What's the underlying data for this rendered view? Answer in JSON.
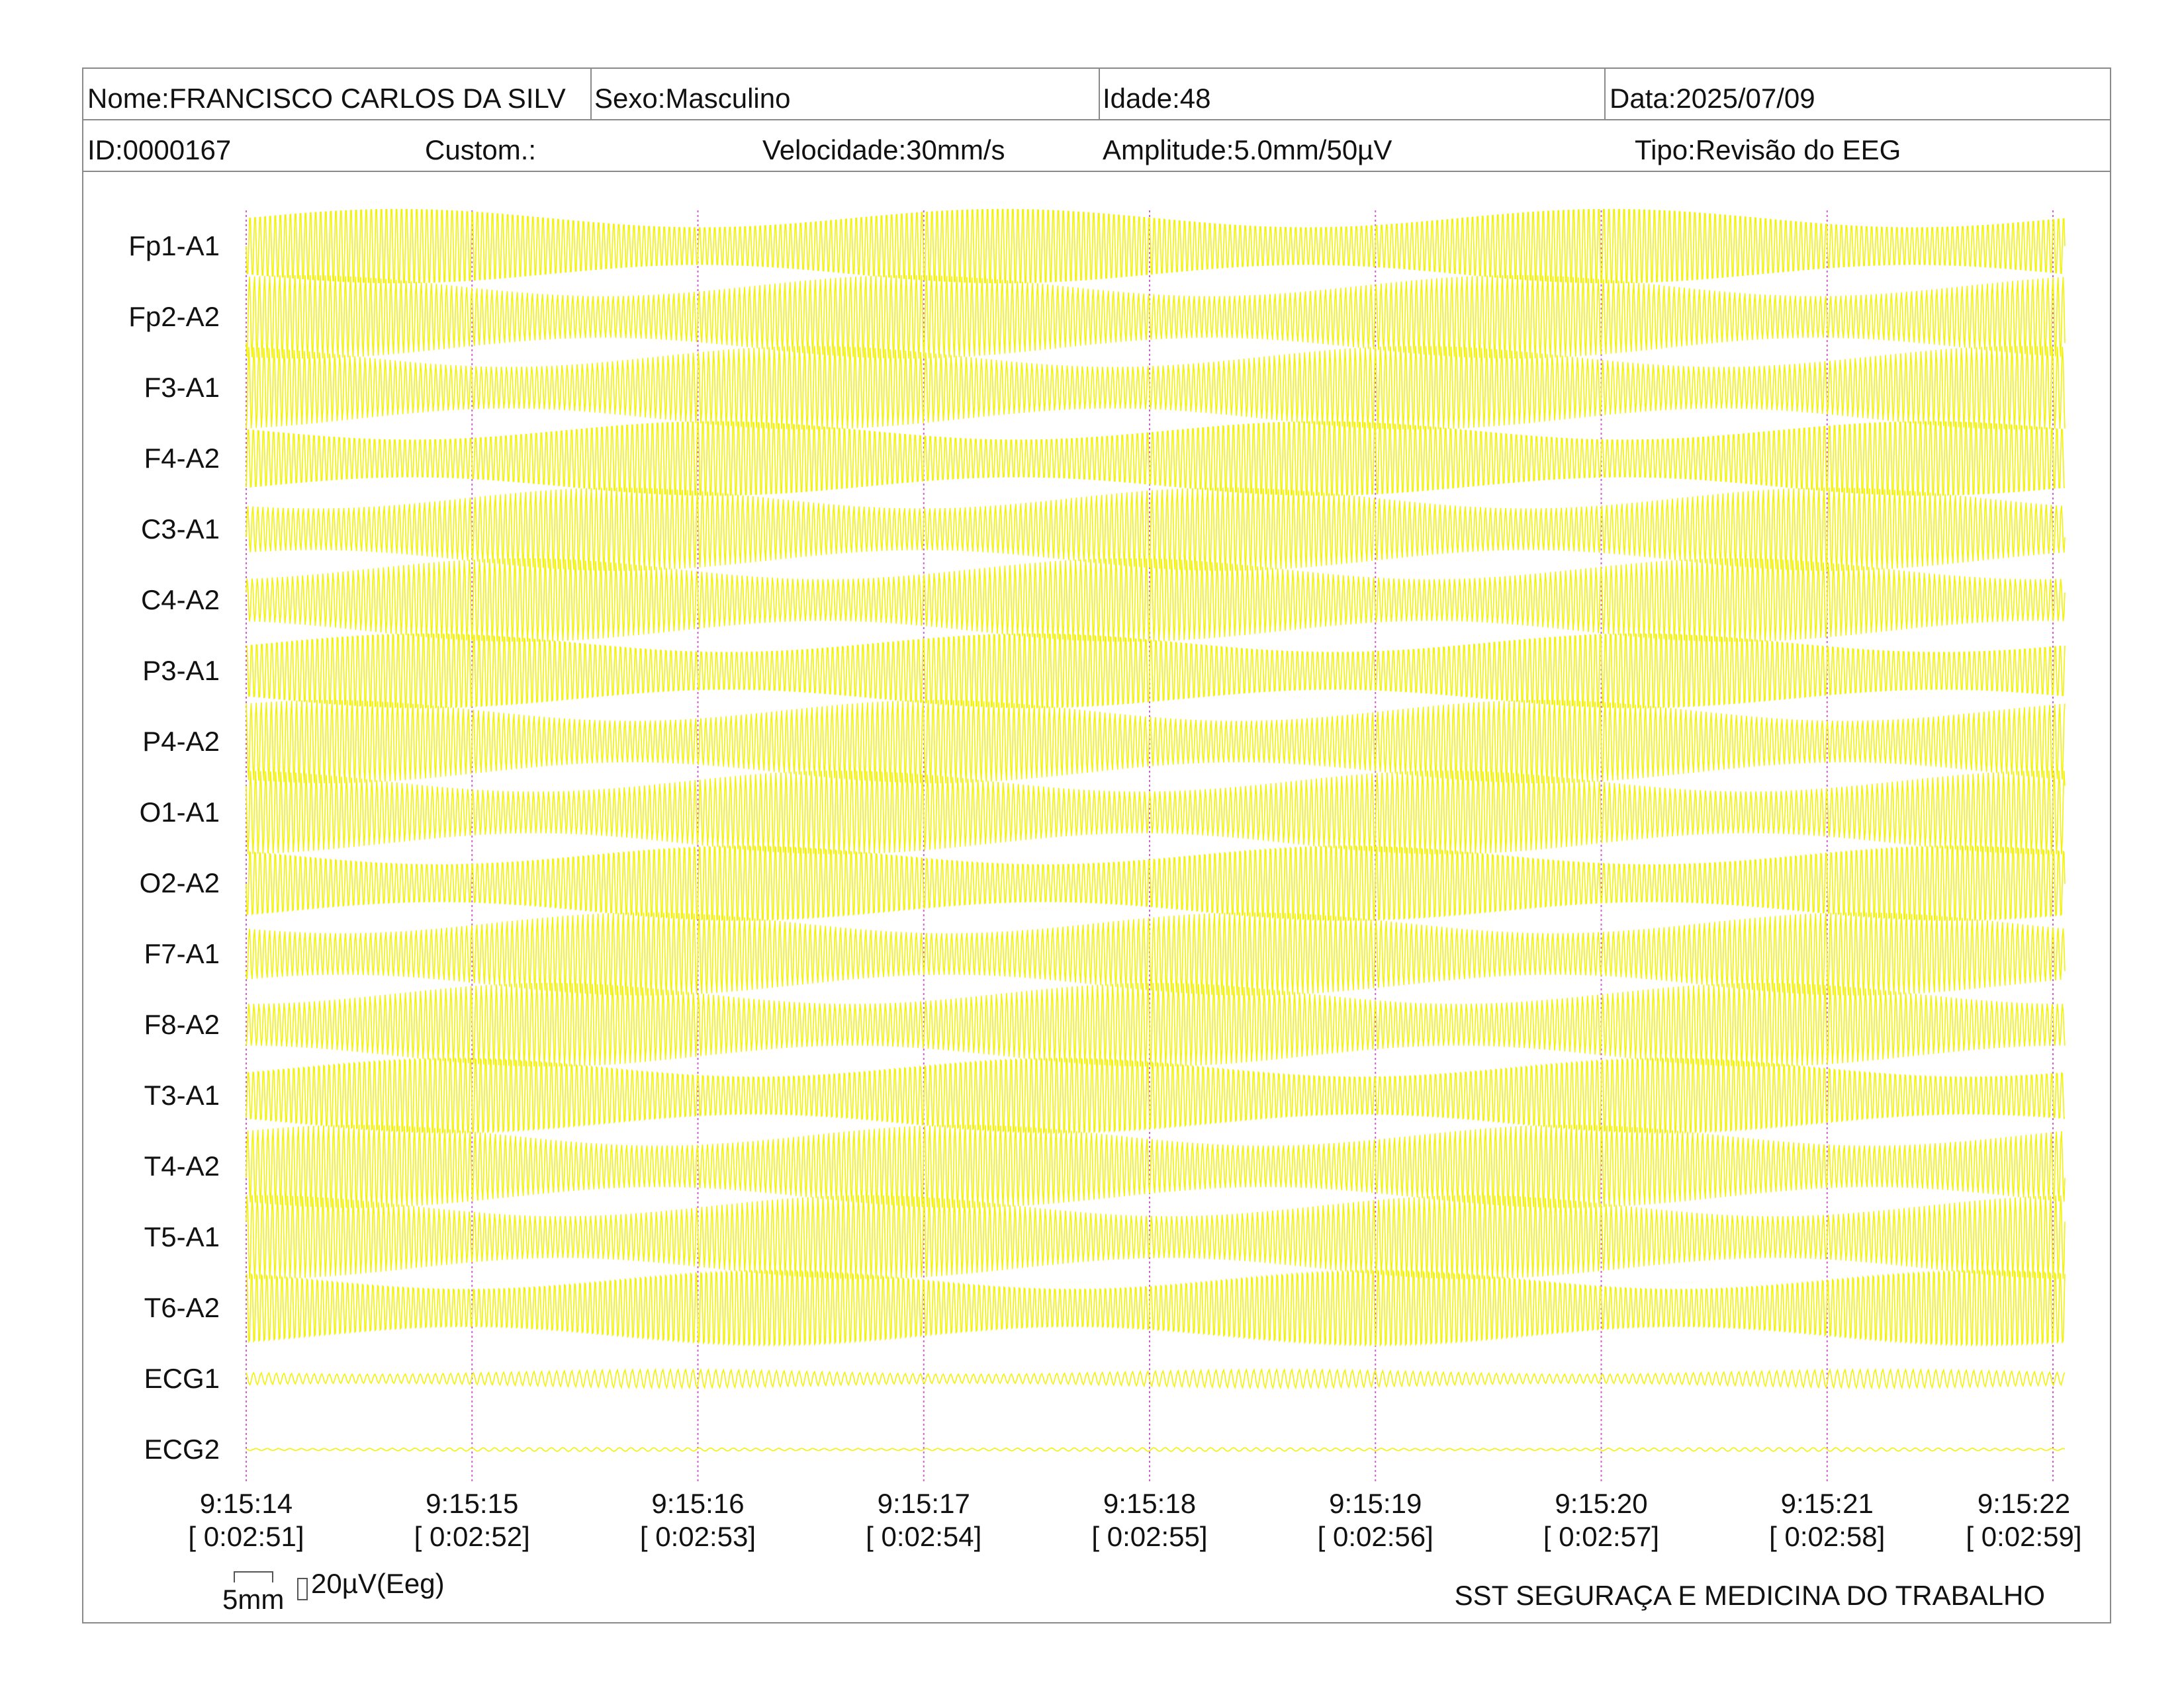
{
  "header": {
    "nome": "Nome:FRANCISCO CARLOS DA SILV",
    "sexo": "Sexo:Masculino",
    "idade": "Idade:48",
    "data": "Data:2025/07/09",
    "id": "ID:0000167",
    "custom": "Custom.:",
    "velocidade": "Velocidade:30mm/s",
    "amplitude": "Amplitude:5.0mm/50µV",
    "tipo": "Tipo:Revisão do EEG"
  },
  "channels": [
    "Fp1-A1",
    "Fp2-A2",
    "F3-A1",
    "F4-A2",
    "C3-A1",
    "C4-A2",
    "P3-A1",
    "P4-A2",
    "O1-A1",
    "O2-A2",
    "F7-A1",
    "F8-A2",
    "T3-A1",
    "T4-A2",
    "T5-A1",
    "T6-A2",
    "ECG1",
    "ECG2"
  ],
  "time_marks": [
    {
      "clock": "9:15:14",
      "elapsed": "[ 0:02:51]"
    },
    {
      "clock": "9:15:15",
      "elapsed": "[ 0:02:52]"
    },
    {
      "clock": "9:15:16",
      "elapsed": "[ 0:02:53]"
    },
    {
      "clock": "9:15:17",
      "elapsed": "[ 0:02:54]"
    },
    {
      "clock": "9:15:18",
      "elapsed": "[ 0:02:55]"
    },
    {
      "clock": "9:15:19",
      "elapsed": "[ 0:02:56]"
    },
    {
      "clock": "9:15:20",
      "elapsed": "[ 0:02:57]"
    },
    {
      "clock": "9:15:21",
      "elapsed": "[ 0:02:58]"
    },
    {
      "clock": "9:15:22",
      "elapsed": "[ 0:02:59]"
    }
  ],
  "scale": {
    "time": "5mm",
    "amplitude": "20µV(Eeg)"
  },
  "footer": {
    "company": "SST SEGURAÇA E MEDICINA DO TRABALHO"
  },
  "colors": {
    "trace": "#f2f20a",
    "marker": "#d060d0",
    "border": "#8a8a8a"
  }
}
